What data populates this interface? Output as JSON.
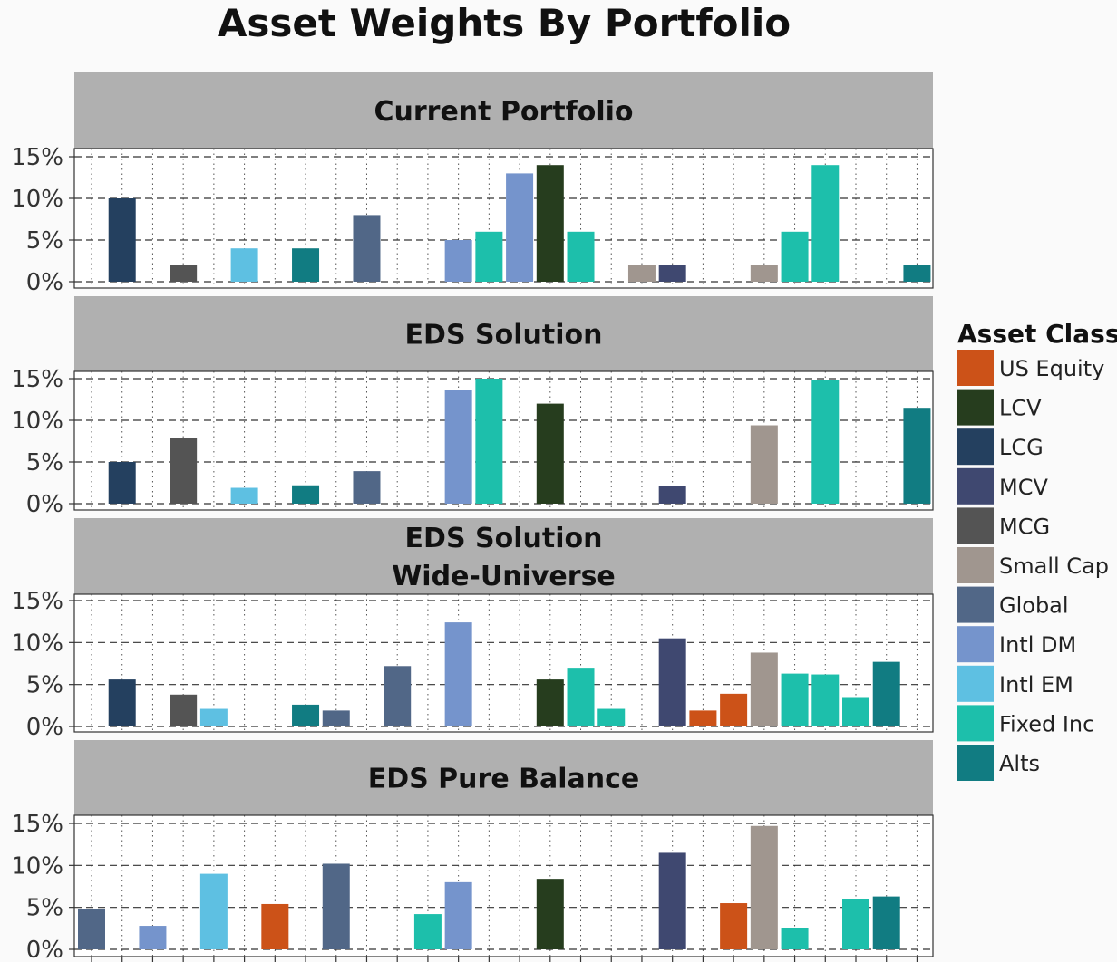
{
  "chart_data": {
    "type": "bar",
    "title": "Asset Weights By Portfolio",
    "legend_title": "Asset Class",
    "legend_position": "right",
    "xlabel": "",
    "ylabel": "",
    "ylim": [
      0,
      15
    ],
    "y_ticks": [
      "0%",
      "5%",
      "10%",
      "15%"
    ],
    "y_tick_values": [
      0,
      5,
      10,
      15
    ],
    "x_slot_count": 28,
    "asset_classes": [
      {
        "name": "US Equity",
        "color": "#cc5218"
      },
      {
        "name": "LCV",
        "color": "#263d1e"
      },
      {
        "name": "LCG",
        "color": "#24405f"
      },
      {
        "name": "MCV",
        "color": "#3f4870"
      },
      {
        "name": "MCG",
        "color": "#545454"
      },
      {
        "name": "Small Cap",
        "color": "#a0968f"
      },
      {
        "name": "Global",
        "color": "#516787"
      },
      {
        "name": "Intl DM",
        "color": "#7594cc"
      },
      {
        "name": "Intl EM",
        "color": "#5ec0e2"
      },
      {
        "name": "Fixed Inc",
        "color": "#1dbfab"
      },
      {
        "name": "Alts",
        "color": "#117c82"
      }
    ],
    "panels": [
      {
        "label": "Current Portfolio",
        "bars": [
          {
            "slot": 2,
            "class": "LCG",
            "value": 10
          },
          {
            "slot": 4,
            "class": "MCG",
            "value": 2
          },
          {
            "slot": 6,
            "class": "Intl EM",
            "value": 4
          },
          {
            "slot": 8,
            "class": "Alts",
            "value": 4
          },
          {
            "slot": 10,
            "class": "Global",
            "value": 8
          },
          {
            "slot": 13,
            "class": "Intl DM",
            "value": 5
          },
          {
            "slot": 14,
            "class": "Fixed Inc",
            "value": 6
          },
          {
            "slot": 15,
            "class": "Intl DM",
            "value": 13
          },
          {
            "slot": 16,
            "class": "LCV",
            "value": 14
          },
          {
            "slot": 17,
            "class": "Fixed Inc",
            "value": 6
          },
          {
            "slot": 19,
            "class": "Small Cap",
            "value": 2
          },
          {
            "slot": 20,
            "class": "MCV",
            "value": 2
          },
          {
            "slot": 23,
            "class": "Small Cap",
            "value": 2
          },
          {
            "slot": 24,
            "class": "Fixed Inc",
            "value": 6
          },
          {
            "slot": 25,
            "class": "Fixed Inc",
            "value": 14
          },
          {
            "slot": 28,
            "class": "Alts",
            "value": 2
          }
        ]
      },
      {
        "label": "EDS Solution",
        "bars": [
          {
            "slot": 2,
            "class": "LCG",
            "value": 5
          },
          {
            "slot": 4,
            "class": "MCG",
            "value": 7.9
          },
          {
            "slot": 6,
            "class": "Intl EM",
            "value": 1.9
          },
          {
            "slot": 8,
            "class": "Alts",
            "value": 2.2
          },
          {
            "slot": 10,
            "class": "Global",
            "value": 3.9
          },
          {
            "slot": 13,
            "class": "Intl DM",
            "value": 13.6
          },
          {
            "slot": 14,
            "class": "Fixed Inc",
            "value": 15
          },
          {
            "slot": 16,
            "class": "LCV",
            "value": 12
          },
          {
            "slot": 20,
            "class": "MCV",
            "value": 2.1
          },
          {
            "slot": 23,
            "class": "Small Cap",
            "value": 9.4
          },
          {
            "slot": 25,
            "class": "Fixed Inc",
            "value": 14.8
          },
          {
            "slot": 28,
            "class": "Alts",
            "value": 11.5
          }
        ]
      },
      {
        "label": "EDS Solution\nWide-Universe",
        "bars": [
          {
            "slot": 2,
            "class": "LCG",
            "value": 5.6
          },
          {
            "slot": 4,
            "class": "MCG",
            "value": 3.8
          },
          {
            "slot": 5,
            "class": "Intl EM",
            "value": 2.1
          },
          {
            "slot": 8,
            "class": "Alts",
            "value": 2.6
          },
          {
            "slot": 9,
            "class": "Global",
            "value": 1.9
          },
          {
            "slot": 11,
            "class": "Global",
            "value": 7.2
          },
          {
            "slot": 13,
            "class": "Intl DM",
            "value": 12.4
          },
          {
            "slot": 16,
            "class": "LCV",
            "value": 5.6
          },
          {
            "slot": 17,
            "class": "Fixed Inc",
            "value": 7
          },
          {
            "slot": 18,
            "class": "Fixed Inc",
            "value": 2.1
          },
          {
            "slot": 20,
            "class": "MCV",
            "value": 10.5
          },
          {
            "slot": 21,
            "class": "US Equity",
            "value": 1.9
          },
          {
            "slot": 22,
            "class": "US Equity",
            "value": 3.9
          },
          {
            "slot": 23,
            "class": "Small Cap",
            "value": 8.8
          },
          {
            "slot": 24,
            "class": "Fixed Inc",
            "value": 6.3
          },
          {
            "slot": 25,
            "class": "Fixed Inc",
            "value": 6.2
          },
          {
            "slot": 26,
            "class": "Fixed Inc",
            "value": 3.4
          },
          {
            "slot": 27,
            "class": "Alts",
            "value": 7.7
          }
        ]
      },
      {
        "label": "EDS Pure Balance",
        "bars": [
          {
            "slot": 1,
            "class": "Global",
            "value": 4.8
          },
          {
            "slot": 3,
            "class": "Intl DM",
            "value": 2.8
          },
          {
            "slot": 5,
            "class": "Intl EM",
            "value": 9
          },
          {
            "slot": 7,
            "class": "US Equity",
            "value": 5.4
          },
          {
            "slot": 9,
            "class": "Global",
            "value": 10.2
          },
          {
            "slot": 12,
            "class": "Fixed Inc",
            "value": 4.2
          },
          {
            "slot": 13,
            "class": "Intl DM",
            "value": 8
          },
          {
            "slot": 16,
            "class": "LCV",
            "value": 8.4
          },
          {
            "slot": 20,
            "class": "MCV",
            "value": 11.5
          },
          {
            "slot": 22,
            "class": "US Equity",
            "value": 5.5
          },
          {
            "slot": 23,
            "class": "Small Cap",
            "value": 14.7
          },
          {
            "slot": 24,
            "class": "Fixed Inc",
            "value": 2.5
          },
          {
            "slot": 26,
            "class": "Fixed Inc",
            "value": 6
          },
          {
            "slot": 27,
            "class": "Alts",
            "value": 6.3
          }
        ]
      }
    ]
  }
}
